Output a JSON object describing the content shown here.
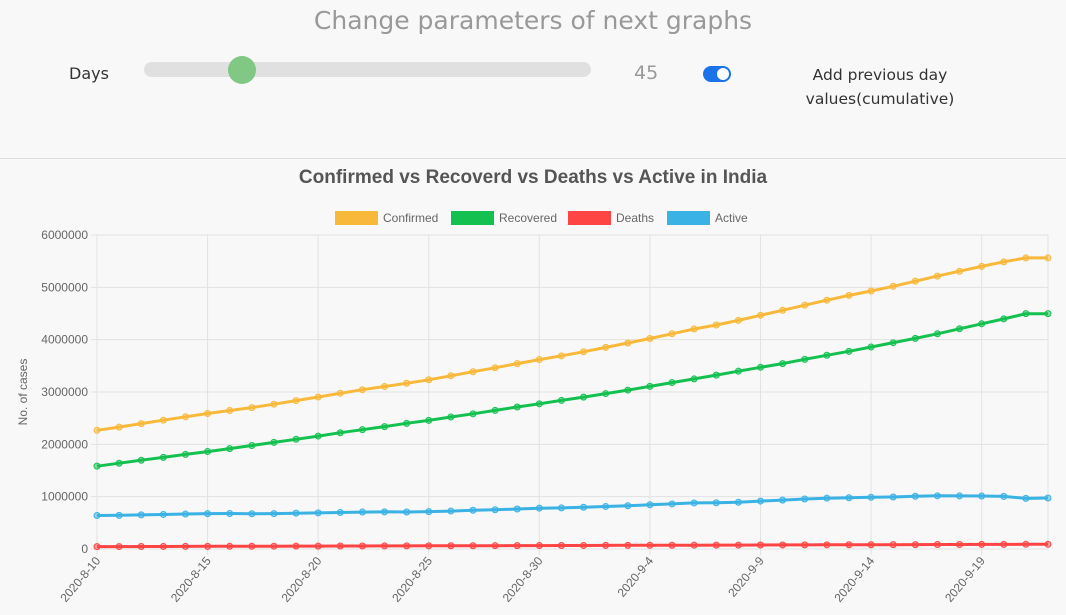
{
  "controls": {
    "heading": "Change parameters of next graphs",
    "days_label": "Days",
    "days_value": "45",
    "slider_level": 0.22,
    "cumulative_on": true,
    "cumulative_label": "Add previous day values(cumulative)"
  },
  "colors": {
    "Confirmed": "#f8b93b",
    "Recovered": "#14c050",
    "Deaths": "#ff4444",
    "Active": "#3ab2e4",
    "slider_thumb": "#80c883",
    "toggle": "#1a73e8"
  },
  "chart_data": {
    "type": "line",
    "title": "Confirmed vs Recoverd vs Deaths vs Active in India",
    "ylabel": "No. of cases",
    "xlabel": "",
    "ylim": [
      0,
      6000000
    ],
    "yticks": [
      "0",
      "1000000",
      "2000000",
      "3000000",
      "4000000",
      "5000000",
      "6000000"
    ],
    "x_tick_labels": [
      "2020-8-10",
      "2020-8-15",
      "2020-8-20",
      "2020-8-25",
      "2020-8-30",
      "2020-9-4",
      "2020-9-9",
      "2020-9-14",
      "2020-9-19"
    ],
    "x": [
      "2020-8-10",
      "2020-8-11",
      "2020-8-12",
      "2020-8-13",
      "2020-8-14",
      "2020-8-15",
      "2020-8-16",
      "2020-8-17",
      "2020-8-18",
      "2020-8-19",
      "2020-8-20",
      "2020-8-21",
      "2020-8-22",
      "2020-8-23",
      "2020-8-24",
      "2020-8-25",
      "2020-8-26",
      "2020-8-27",
      "2020-8-28",
      "2020-8-29",
      "2020-8-30",
      "2020-8-31",
      "2020-9-1",
      "2020-9-2",
      "2020-9-3",
      "2020-9-4",
      "2020-9-5",
      "2020-9-6",
      "2020-9-7",
      "2020-9-8",
      "2020-9-9",
      "2020-9-10",
      "2020-9-11",
      "2020-9-12",
      "2020-9-13",
      "2020-9-14",
      "2020-9-15",
      "2020-9-16",
      "2020-9-17",
      "2020-9-18",
      "2020-9-19",
      "2020-9-20",
      "2020-9-21",
      "2020-9-22"
    ],
    "grid": true,
    "legend": "top",
    "series": [
      {
        "name": "Confirmed",
        "values": [
          2268000,
          2329000,
          2396000,
          2461000,
          2526000,
          2589000,
          2647000,
          2702000,
          2767000,
          2836000,
          2905000,
          2975000,
          3044000,
          3106000,
          3167000,
          3234000,
          3310000,
          3387000,
          3463000,
          3542000,
          3620000,
          3691000,
          3769000,
          3853000,
          3936000,
          4023000,
          4113000,
          4204000,
          4280000,
          4369000,
          4465000,
          4562000,
          4659000,
          4754000,
          4846000,
          4930000,
          5020000,
          5118000,
          5214000,
          5308000,
          5400000,
          5487000,
          5562000,
          5562000
        ]
      },
      {
        "name": "Recovered",
        "values": [
          1583000,
          1639000,
          1696000,
          1751000,
          1808000,
          1862000,
          1918000,
          1977000,
          2037000,
          2096000,
          2158000,
          2222000,
          2280000,
          2338000,
          2401000,
          2458000,
          2523000,
          2583000,
          2648000,
          2713000,
          2774000,
          2839000,
          2902000,
          2970000,
          3037000,
          3107000,
          3180000,
          3250000,
          3323000,
          3398000,
          3472000,
          3542000,
          3624000,
          3702000,
          3777000,
          3859000,
          3942000,
          4025000,
          4112000,
          4208000,
          4303000,
          4397000,
          4497000,
          4497000
        ]
      },
      {
        "name": "Deaths",
        "values": [
          45000,
          46300,
          47500,
          48500,
          49600,
          50700,
          51700,
          52600,
          53600,
          54600,
          55600,
          56700,
          57700,
          58600,
          59500,
          60500,
          61600,
          62700,
          63700,
          64700,
          65700,
          66800,
          67700,
          68800,
          69800,
          70800,
          71900,
          73000,
          74000,
          75100,
          76300,
          77500,
          78600,
          79800,
          80900,
          81900,
          83000,
          84200,
          85300,
          86500,
          87600,
          88700,
          89800,
          89800
        ]
      },
      {
        "name": "Active",
        "values": [
          640000,
          643000,
          652000,
          660000,
          668000,
          676000,
          678000,
          673000,
          676000,
          685000,
          690000,
          697000,
          706000,
          710000,
          707000,
          714000,
          725000,
          740000,
          750000,
          765000,
          780000,
          785000,
          798000,
          813000,
          826000,
          845000,
          861000,
          880000,
          884000,
          893000,
          916000,
          934000,
          955000,
          971000,
          979000,
          988000,
          994000,
          1008000,
          1016000,
          1014000,
          1012000,
          1005000,
          967000,
          975000
        ]
      }
    ]
  }
}
